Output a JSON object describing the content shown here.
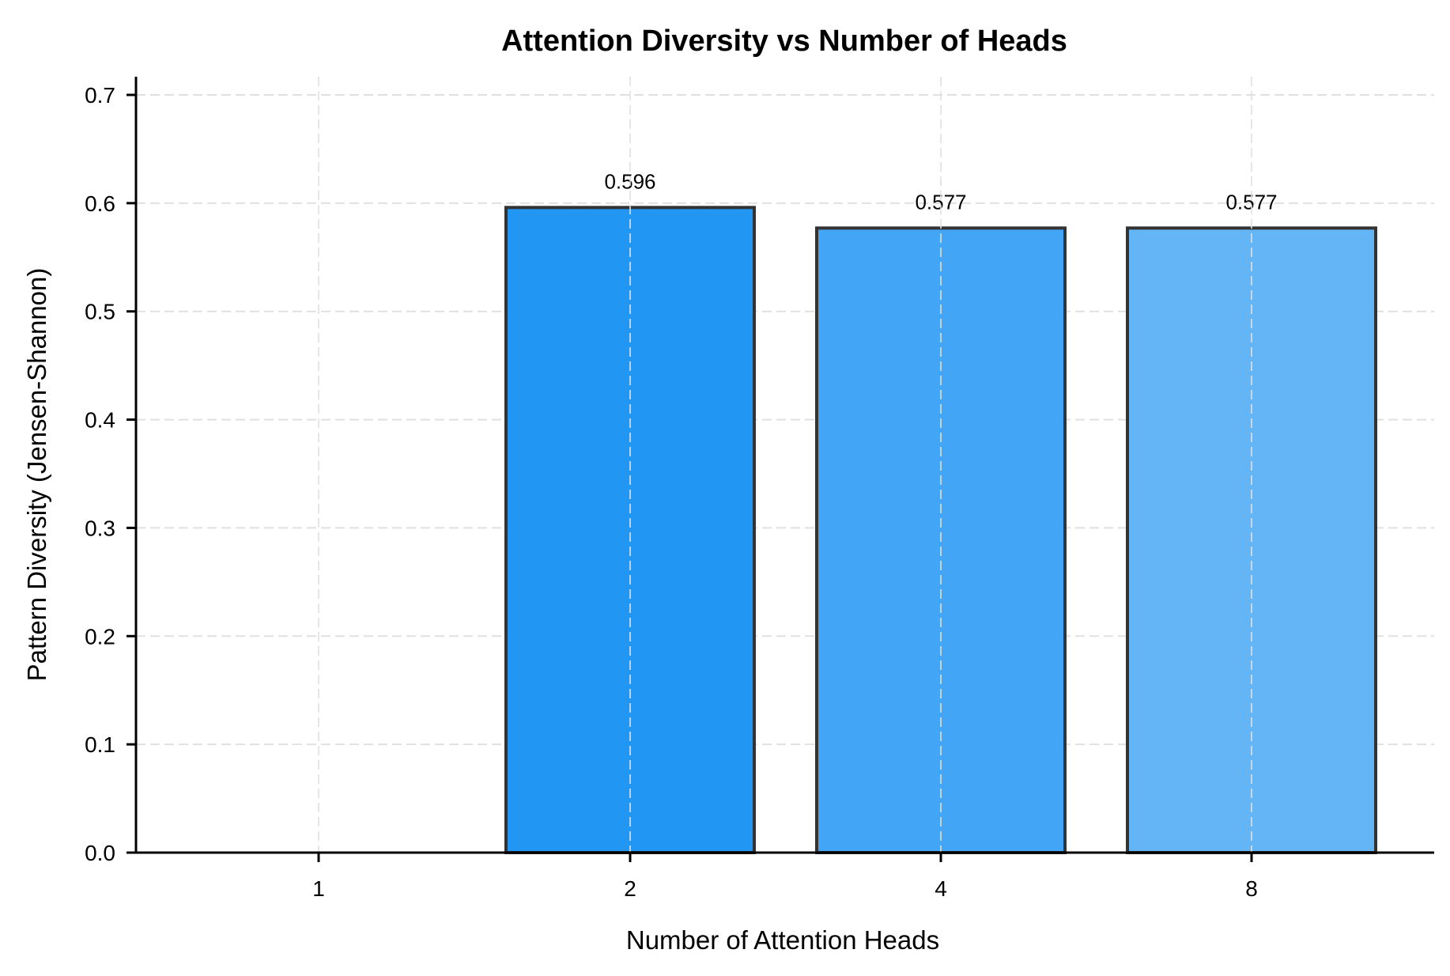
{
  "chart_data": {
    "type": "bar",
    "title": "Attention Diversity vs Number of Heads",
    "xlabel": "Number of Attention Heads",
    "ylabel": "Pattern Diversity (Jensen-Shannon)",
    "categories": [
      "1",
      "2",
      "4",
      "8"
    ],
    "values": [
      0.0,
      0.596,
      0.577,
      0.577
    ],
    "value_labels": [
      "",
      "0.596",
      "0.577",
      "0.577"
    ],
    "colors": [
      "#1976D2",
      "#2196F3",
      "#42A5F5",
      "#64B5F6"
    ],
    "edge_color": "#333333",
    "ylim": [
      0,
      0.7
    ],
    "yticks": [
      "0.0",
      "0.1",
      "0.2",
      "0.3",
      "0.4",
      "0.5",
      "0.6",
      "0.7"
    ],
    "grid": true,
    "legend": null
  }
}
